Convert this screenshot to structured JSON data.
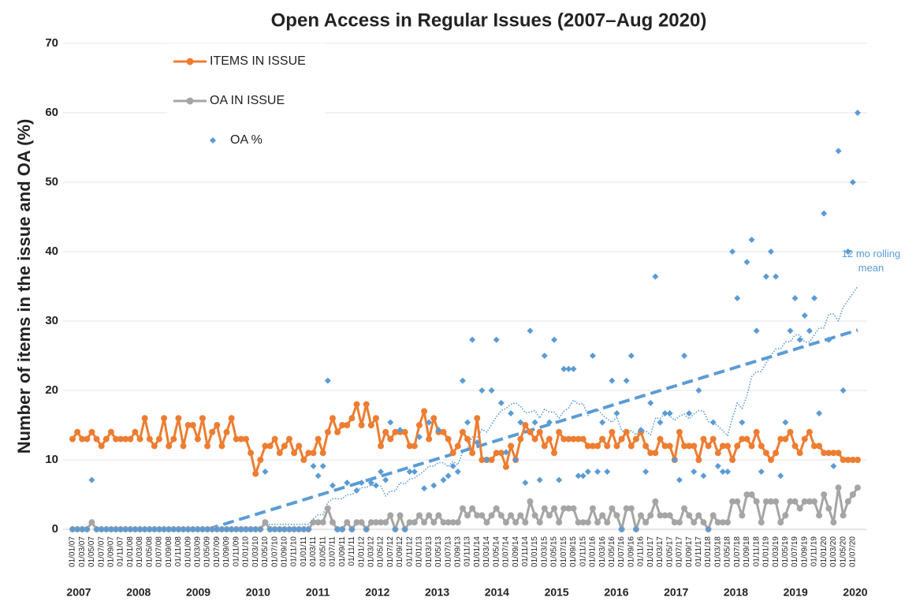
{
  "chart_data": {
    "type": "line",
    "title": "Open Access in Regular Issues  (2007–Aug 2020)",
    "y_label": "Number of items in the issue and OA (%)",
    "categories": [
      "01/01/07",
      null,
      "01/03/07",
      null,
      "01/05/07",
      null,
      "01/07/07",
      null,
      "01/09/07",
      null,
      "01/11/07",
      null,
      "01/01/08",
      null,
      "01/03/08",
      null,
      "01/05/08",
      null,
      "01/07/08",
      null,
      "01/09/08",
      null,
      "01/11/08",
      null,
      "01/01/09",
      null,
      "01/03/09",
      null,
      "01/05/09",
      null,
      "01/07/09",
      null,
      "01/09/09",
      null,
      "01/11/09",
      null,
      "01/01/10",
      null,
      "01/03/10",
      null,
      "01/05/10",
      null,
      "01/07/10",
      null,
      "01/09/10",
      null,
      "01/11/10",
      null,
      "01/01/11",
      null,
      "01/03/11",
      null,
      "01/05/11",
      null,
      "01/07/11",
      null,
      "01/09/11",
      null,
      "01/11/11",
      null,
      "01/01/12",
      null,
      "01/03/12",
      null,
      "01/05/12",
      null,
      "01/07/12",
      null,
      "01/09/12",
      null,
      "01/11/12",
      null,
      "01/01/13",
      null,
      "01/03/13",
      null,
      "01/05/13",
      null,
      "01/07/13",
      null,
      "01/09/13",
      null,
      "01/11/13",
      null,
      "01/01/14",
      null,
      "01/03/14",
      null,
      "01/05/14",
      null,
      "01/07/14",
      null,
      "01/09/14",
      null,
      "01/11/14",
      null,
      "01/01/15",
      null,
      "01/03/15",
      null,
      "01/05/15",
      null,
      "01/07/15",
      null,
      "01/09/15",
      null,
      "01/11/15",
      null,
      "01/01/16",
      null,
      "01/03/16",
      null,
      "01/05/16",
      null,
      "01/07/16",
      null,
      "01/09/16",
      null,
      "01/11/16",
      null,
      "01/01/17",
      null,
      "01/03/17",
      null,
      "01/05/17",
      null,
      "01/07/17",
      null,
      "01/09/17",
      null,
      "01/11/17",
      null,
      "01/01/18",
      null,
      "01/03/18",
      null,
      "01/05/18",
      null,
      "01/07/18",
      null,
      "01/09/18",
      null,
      "01/11/18",
      null,
      "01/01/19",
      null,
      "01/03/19",
      null,
      "01/05/19",
      null,
      "01/07/19",
      null,
      "01/09/19",
      null,
      "01/11/19",
      null,
      "01/01/20",
      null,
      "01/03/20",
      null,
      "01/05/20",
      null,
      "01/07/20",
      null
    ],
    "year_labels": [
      "2007",
      "2008",
      "2009",
      "2010",
      "2011",
      "2012",
      "2013",
      "2014",
      "2015",
      "2016",
      "2017",
      "2018",
      "2019",
      "2020"
    ],
    "series": [
      {
        "name": "ITEMS IN ISSUE",
        "color": "#ed7d31",
        "style": "line-marker",
        "values": [
          13,
          14,
          13,
          13,
          14,
          13,
          12,
          13,
          14,
          13,
          13,
          13,
          13,
          14,
          13,
          16,
          13,
          12,
          13,
          16,
          12,
          13,
          16,
          12,
          15,
          15,
          13,
          16,
          12,
          14,
          15,
          12,
          14,
          16,
          13,
          13,
          13,
          11,
          8,
          10,
          12,
          12,
          13,
          11,
          12,
          13,
          11,
          12,
          10,
          11,
          11,
          13,
          11,
          14,
          16,
          14,
          15,
          15,
          16,
          18,
          15,
          18,
          15,
          16,
          12,
          14,
          13,
          14,
          14,
          14,
          12,
          12,
          15,
          17,
          13,
          16,
          14,
          14,
          13,
          11,
          12,
          14,
          13,
          11,
          16,
          10,
          10,
          10,
          11,
          11,
          9,
          12,
          10,
          13,
          15,
          14,
          13,
          14,
          12,
          13,
          11,
          14,
          13,
          13,
          13,
          13,
          13,
          12,
          12,
          12,
          13,
          12,
          14,
          12,
          13,
          14,
          12,
          13,
          14,
          12,
          11,
          11,
          13,
          12,
          12,
          10,
          14,
          12,
          12,
          12,
          10,
          13,
          12,
          13,
          11,
          12,
          12,
          10,
          12,
          13,
          13,
          12,
          14,
          12,
          11,
          10,
          11,
          13,
          13,
          14,
          12,
          11,
          13,
          14,
          12,
          12,
          11,
          11,
          11,
          11,
          10,
          10,
          10,
          10
        ]
      },
      {
        "name": "OA IN ISSUE",
        "color": "#a5a5a5",
        "style": "line-marker",
        "values": [
          0,
          0,
          0,
          0,
          1,
          0,
          0,
          0,
          0,
          0,
          0,
          0,
          0,
          0,
          0,
          0,
          0,
          0,
          0,
          0,
          0,
          0,
          0,
          0,
          0,
          0,
          0,
          0,
          0,
          0,
          0,
          0,
          0,
          0,
          0,
          0,
          0,
          0,
          0,
          0,
          1,
          0,
          0,
          0,
          0,
          0,
          0,
          0,
          0,
          0,
          1,
          1,
          1,
          3,
          1,
          0,
          0,
          1,
          0,
          1,
          1,
          0,
          1,
          1,
          1,
          1,
          2,
          0,
          2,
          0,
          1,
          1,
          2,
          1,
          2,
          1,
          2,
          1,
          1,
          1,
          1,
          3,
          2,
          3,
          2,
          2,
          1,
          2,
          3,
          2,
          1,
          2,
          1,
          2,
          1,
          4,
          2,
          1,
          3,
          2,
          3,
          1,
          3,
          3,
          3,
          1,
          1,
          1,
          3,
          1,
          2,
          1,
          3,
          2,
          0,
          3,
          3,
          0,
          2,
          1,
          2,
          4,
          2,
          2,
          2,
          1,
          1,
          3,
          2,
          1,
          2,
          1,
          0,
          2,
          1,
          1,
          1,
          4,
          4,
          2,
          5,
          5,
          4,
          1,
          4,
          4,
          4,
          1,
          2,
          4,
          4,
          3,
          4,
          4,
          4,
          2,
          5,
          3,
          1,
          6,
          2,
          4,
          5,
          6
        ]
      },
      {
        "name": "OA %",
        "color": "#5b9bd5",
        "style": "diamond",
        "values": [
          0,
          0,
          0,
          0,
          7.1,
          0,
          0,
          0,
          0,
          0,
          0,
          0,
          0,
          0,
          0,
          0,
          0,
          0,
          0,
          0,
          0,
          0,
          0,
          0,
          0,
          0,
          0,
          0,
          0,
          0,
          0,
          0,
          0,
          0,
          0,
          0,
          0,
          0,
          0,
          0,
          8.3,
          0,
          0,
          0,
          0,
          0,
          0,
          0,
          0,
          0,
          9.1,
          7.7,
          9.1,
          21.4,
          6.3,
          0,
          0,
          6.7,
          0,
          5.6,
          6.7,
          0,
          6.7,
          6.3,
          8.3,
          7.1,
          15.4,
          0,
          14.3,
          0,
          8.3,
          8.3,
          13.3,
          5.9,
          15.4,
          6.3,
          14.3,
          7.1,
          7.7,
          9.1,
          8.3,
          21.4,
          15.4,
          27.3,
          12.5,
          20,
          10,
          20,
          27.3,
          18.2,
          11.1,
          16.7,
          10,
          15.4,
          6.7,
          28.6,
          15.4,
          7.1,
          25,
          15.4,
          27.3,
          7.1,
          23.1,
          23.1,
          23.1,
          7.7,
          7.7,
          8.3,
          25,
          8.3,
          15.4,
          8.3,
          21.4,
          16.7,
          0,
          21.4,
          25,
          0,
          14.3,
          8.3,
          18.2,
          36.4,
          15.4,
          16.7,
          16.7,
          10,
          7.1,
          25,
          16.7,
          8.3,
          20,
          7.7,
          0,
          15.4,
          9.1,
          8.3,
          8.3,
          40,
          33.3,
          15.4,
          38.5,
          41.7,
          28.6,
          8.3,
          36.4,
          40,
          36.4,
          7.7,
          15.4,
          28.6,
          33.3,
          27.3,
          30.8,
          28.6,
          33.3,
          16.7,
          45.5,
          27.3,
          9.1,
          54.5,
          20,
          40,
          50,
          60
        ]
      },
      {
        "name": "12 mo rolling mean",
        "color": "#5b9bd5",
        "style": "dotted",
        "legend": false,
        "values": [
          null,
          null,
          null,
          null,
          null,
          null,
          null,
          null,
          null,
          null,
          null,
          null,
          null,
          null,
          null,
          null,
          null,
          null,
          null,
          null,
          null,
          null,
          null,
          null,
          null,
          null,
          null,
          null,
          null,
          null,
          null,
          null,
          null,
          null,
          null,
          null,
          0,
          0,
          0,
          0,
          0.7,
          0.7,
          0.7,
          0.7,
          0.7,
          0.7,
          0.7,
          0.7,
          0.7,
          0.7,
          1.5,
          2.1,
          2.1,
          3.9,
          4.4,
          4.4,
          4.4,
          5,
          5,
          5.5,
          6,
          6,
          6.4,
          6.3,
          6.2,
          4.8,
          5.5,
          5.5,
          6.7,
          6.5,
          7.2,
          7.4,
          7.9,
          8.4,
          9.1,
          9.1,
          9.6,
          9.6,
          9,
          9.8,
          9.3,
          11.1,
          11.7,
          13.3,
          13.2,
          14.4,
          14,
          15.1,
          16.2,
          17.1,
          17.4,
          18,
          18.2,
          17.7,
          16.8,
          16.9,
          17.1,
          16,
          17.3,
          16.9,
          16.9,
          16,
          17,
          17.5,
          18.6,
          18,
          18.1,
          16.4,
          17.2,
          17.3,
          16.5,
          15.9,
          15.4,
          16.2,
          14.2,
          14,
          14.2,
          13.6,
          14.2,
          14.2,
          13.6,
          16,
          16,
          16.7,
          16.3,
          15.7,
          16.3,
          16.6,
          15.9,
          16.6,
          17.1,
          17,
          15.5,
          15.4,
          14.9,
          14.2,
          13.5,
          16,
          18.2,
          17.4,
          19.2,
          22,
          22.7,
          22.7,
          24,
          25,
          26,
          26,
          27,
          27,
          28,
          28,
          27,
          27,
          28,
          29,
          29,
          31,
          31,
          30,
          32,
          33,
          34,
          35
        ]
      }
    ],
    "trend_line": {
      "color": "#5b9bd5",
      "x_index": [
        28,
        163
      ],
      "values": [
        0,
        28.7
      ]
    },
    "ylim": [
      0,
      70
    ],
    "yticks": [
      0,
      10,
      20,
      30,
      40,
      50,
      60,
      70
    ],
    "grid": true,
    "legend": "top-left"
  }
}
